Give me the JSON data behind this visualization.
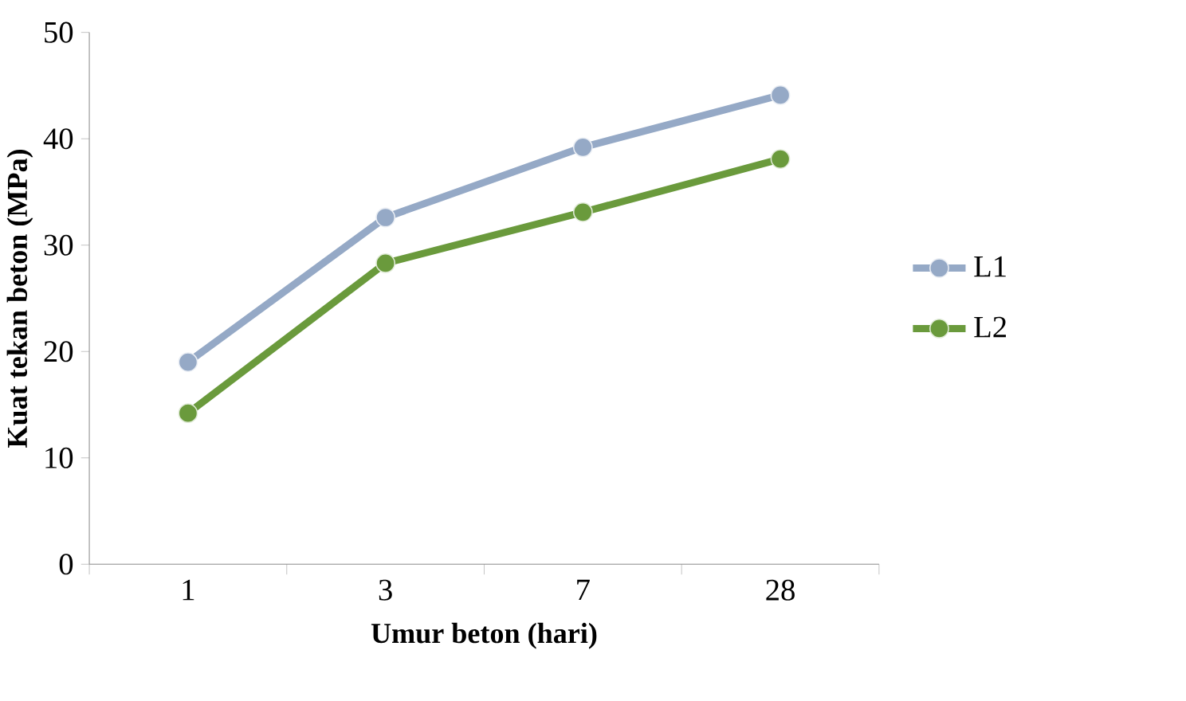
{
  "chart_data": {
    "type": "line",
    "xlabel": "Umur beton (hari)",
    "ylabel": "Kuat tekan beton (MPa)",
    "categories": [
      "1",
      "3",
      "7",
      "28"
    ],
    "series": [
      {
        "name": "L1",
        "color": "#95a9c6",
        "values": [
          19.0,
          32.6,
          39.2,
          44.1
        ]
      },
      {
        "name": "L2",
        "color": "#6a9a3c",
        "values": [
          14.2,
          28.3,
          33.1,
          38.1
        ]
      }
    ],
    "ylim": [
      0,
      50
    ],
    "yticks": [
      0,
      10,
      20,
      30,
      40,
      50
    ],
    "grid": false,
    "legend": "right",
    "marker": "circle",
    "line_style": "solid"
  }
}
